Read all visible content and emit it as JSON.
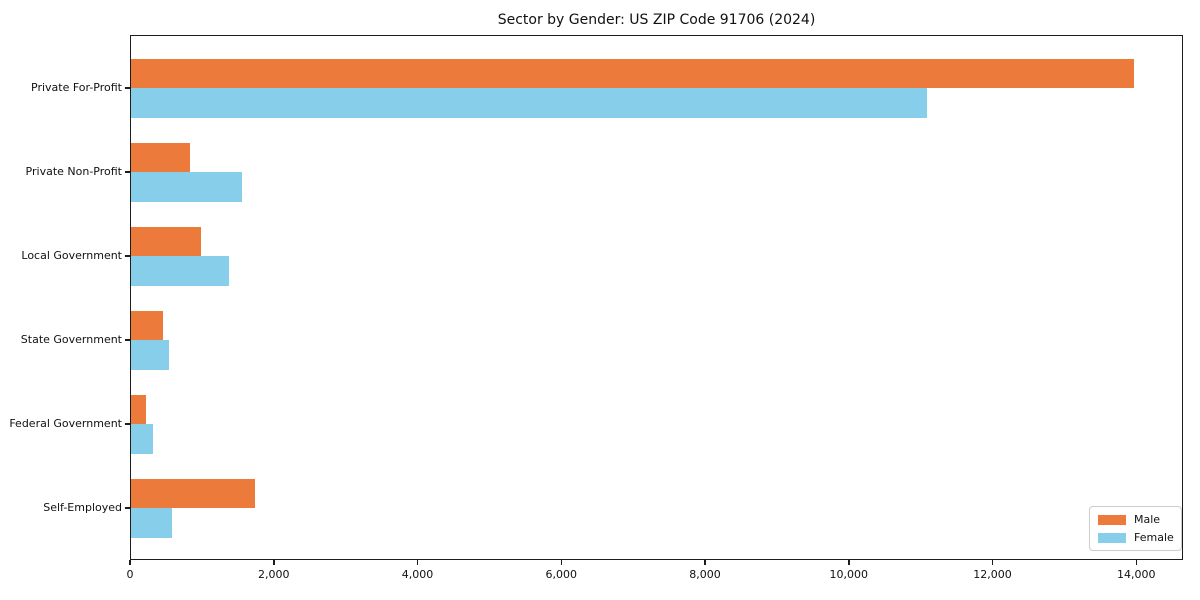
{
  "chart_data": {
    "type": "bar",
    "orientation": "horizontal",
    "title": "Sector by Gender: US ZIP Code 91706 (2024)",
    "categories": [
      "Private For-Profit",
      "Private Non-Profit",
      "Local Government",
      "State Government",
      "Federal Government",
      "Self-Employed"
    ],
    "series": [
      {
        "name": "Male",
        "color": "#ec7a3b",
        "values": [
          13960,
          815,
          980,
          440,
          215,
          1730
        ]
      },
      {
        "name": "Female",
        "color": "#87ceeb",
        "values": [
          11080,
          1550,
          1370,
          535,
          300,
          565
        ]
      }
    ],
    "xlabel": "",
    "ylabel": "",
    "xlim": [
      0,
      14650
    ],
    "xticks": [
      0,
      2000,
      4000,
      6000,
      8000,
      10000,
      12000,
      14000
    ],
    "xtick_labels": [
      "0",
      "2,000",
      "4,000",
      "6,000",
      "8,000",
      "10,000",
      "12,000",
      "14,000"
    ],
    "grid": false,
    "legend_position": "lower right",
    "frame_color": "#1c1c1c",
    "background_color": "#ffffff"
  }
}
